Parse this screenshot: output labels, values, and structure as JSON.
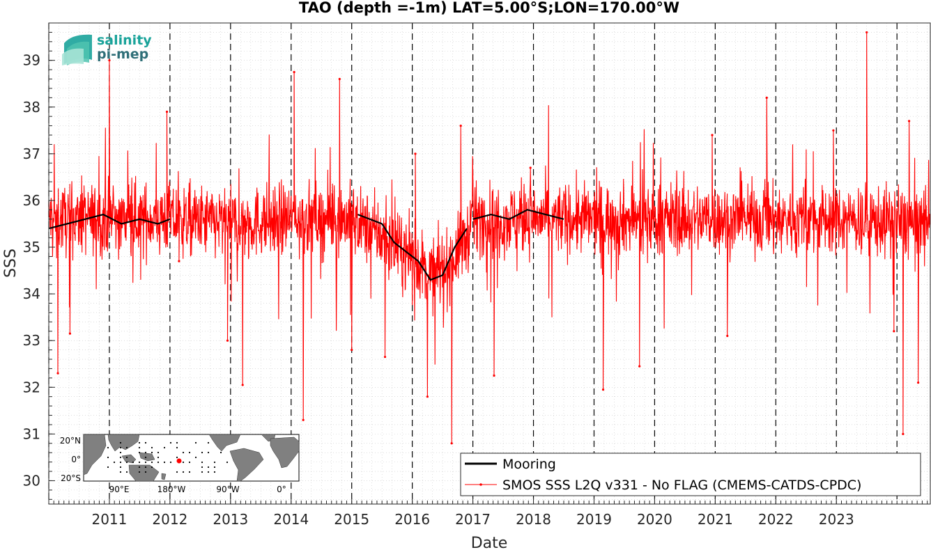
{
  "chart_data": {
    "type": "line",
    "title": "TAO (depth =-1m) LAT=5.00°S;LON=170.00°W",
    "xlabel": "Date",
    "ylabel": "SSS",
    "xlim": [
      2010.0,
      2024.55
    ],
    "ylim": [
      29.5,
      39.8
    ],
    "x_ticks": [
      "2011",
      "2012",
      "2013",
      "2014",
      "2015",
      "2016",
      "2017",
      "2018",
      "2019",
      "2020",
      "2021",
      "2022",
      "2023"
    ],
    "y_ticks": [
      "30",
      "31",
      "32",
      "33",
      "34",
      "35",
      "36",
      "37",
      "38",
      "39"
    ],
    "grid": "minor dotted",
    "year_boundaries": "dashed vertical lines at each year",
    "legend_position": "bottom-right",
    "series": [
      {
        "name": "Mooring",
        "color": "#000000",
        "style": "solid thick",
        "segments": [
          {
            "x": [
              2010.0,
              2010.3,
              2010.6,
              2010.9,
              2011.2,
              2011.5,
              2011.8,
              2012.0
            ],
            "y": [
              35.4,
              35.5,
              35.6,
              35.7,
              35.5,
              35.6,
              35.5,
              35.6
            ]
          },
          {
            "x": [
              2015.1,
              2015.3,
              2015.5,
              2015.7,
              2015.9,
              2016.1,
              2016.3,
              2016.5,
              2016.7,
              2016.9
            ],
            "y": [
              35.7,
              35.6,
              35.5,
              35.1,
              34.9,
              34.7,
              34.3,
              34.4,
              35.0,
              35.4
            ]
          },
          {
            "x": [
              2017.0,
              2017.3,
              2017.6,
              2017.9,
              2018.2,
              2018.5
            ],
            "y": [
              35.6,
              35.7,
              35.6,
              35.8,
              35.7,
              35.6
            ]
          }
        ]
      },
      {
        "name": "SMOS SSS L2Q v331 - No FLAG  (CMEMS-CATDS-CPDC)",
        "color": "#ff0000",
        "style": "thin line with dot markers",
        "mean_profile": {
          "x": [
            2010.0,
            2011.0,
            2012.0,
            2013.0,
            2014.0,
            2015.0,
            2015.4,
            2015.8,
            2016.0,
            2016.3,
            2016.6,
            2016.9,
            2017.0,
            2018.0,
            2019.0,
            2020.0,
            2021.0,
            2022.0,
            2023.0,
            2024.55
          ],
          "y": [
            35.6,
            35.6,
            35.6,
            35.5,
            35.6,
            35.6,
            35.3,
            34.9,
            34.8,
            34.4,
            34.6,
            35.2,
            35.6,
            35.6,
            35.6,
            35.6,
            35.6,
            35.6,
            35.6,
            35.5
          ]
        },
        "typical_spread": 0.5,
        "notable_points": [
          {
            "x": 2010.15,
            "y": 32.3
          },
          {
            "x": 2010.35,
            "y": 33.15
          },
          {
            "x": 2011.0,
            "y": 39.0
          },
          {
            "x": 2011.95,
            "y": 37.9
          },
          {
            "x": 2012.15,
            "y": 34.7
          },
          {
            "x": 2012.95,
            "y": 33.0
          },
          {
            "x": 2013.2,
            "y": 32.05
          },
          {
            "x": 2014.05,
            "y": 38.75
          },
          {
            "x": 2014.2,
            "y": 31.3
          },
          {
            "x": 2014.8,
            "y": 38.6
          },
          {
            "x": 2015.0,
            "y": 32.8
          },
          {
            "x": 2015.55,
            "y": 32.65
          },
          {
            "x": 2016.05,
            "y": 37.0
          },
          {
            "x": 2016.25,
            "y": 31.8
          },
          {
            "x": 2016.65,
            "y": 30.8
          },
          {
            "x": 2016.8,
            "y": 37.6
          },
          {
            "x": 2017.35,
            "y": 32.25
          },
          {
            "x": 2017.95,
            "y": 36.7
          },
          {
            "x": 2019.15,
            "y": 31.95
          },
          {
            "x": 2019.75,
            "y": 32.45
          },
          {
            "x": 2020.95,
            "y": 37.4
          },
          {
            "x": 2021.2,
            "y": 33.1
          },
          {
            "x": 2021.85,
            "y": 38.2
          },
          {
            "x": 2022.95,
            "y": 37.5
          },
          {
            "x": 2023.5,
            "y": 39.6
          },
          {
            "x": 2023.95,
            "y": 33.2
          },
          {
            "x": 2024.1,
            "y": 31.0
          },
          {
            "x": 2024.2,
            "y": 37.7
          },
          {
            "x": 2024.35,
            "y": 32.1
          }
        ]
      }
    ],
    "inset_map": {
      "lat_labels": [
        "20°N",
        "0°",
        "20°S"
      ],
      "lon_labels": [
        "90°E",
        "180°W",
        "90°W",
        "0°"
      ],
      "marker_color": "#ff0000"
    }
  },
  "logo": {
    "line1": "salinity",
    "line2": "pi-mep",
    "color1": "#1aa39a",
    "color2": "#2f6f78"
  },
  "colors": {
    "mooring": "#000000",
    "smos": "#ff0000",
    "axes": "#262626",
    "grid": "#b0b0b0",
    "land": "#808080"
  }
}
